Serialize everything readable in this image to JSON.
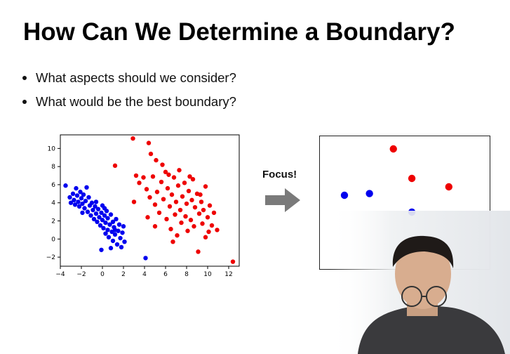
{
  "slide": {
    "title": "How Can We Determine a Boundary?",
    "bullets": [
      "What aspects should we consider?",
      "What would be the best boundary?"
    ],
    "focus_label": "Focus!",
    "arrow_icon": "right-arrow-icon"
  },
  "colors": {
    "blue": "#0000ee",
    "red": "#ee0000",
    "arrow": "#7a7a7a"
  },
  "chart_data": [
    {
      "type": "scatter",
      "xlim": [
        -4,
        13
      ],
      "ylim": [
        -3,
        11.5
      ],
      "xticks": [
        -4,
        -2,
        0,
        2,
        4,
        6,
        8,
        10,
        12
      ],
      "yticks": [
        -2,
        0,
        2,
        4,
        6,
        8,
        10
      ],
      "series": [
        {
          "color": "#0000ee",
          "points": [
            [
              -3.5,
              5.9
            ],
            [
              -3.1,
              4.6
            ],
            [
              -3.0,
              4.0
            ],
            [
              -2.8,
              5.0
            ],
            [
              -2.7,
              4.3
            ],
            [
              -2.5,
              5.6
            ],
            [
              -2.4,
              4.8
            ],
            [
              -2.3,
              4.1
            ],
            [
              -2.2,
              3.6
            ],
            [
              -2.1,
              5.2
            ],
            [
              -2.0,
              4.5
            ],
            [
              -1.9,
              3.9
            ],
            [
              -1.8,
              4.9
            ],
            [
              -1.7,
              3.4
            ],
            [
              -1.6,
              4.2
            ],
            [
              -1.5,
              5.7
            ],
            [
              -1.4,
              3.0
            ],
            [
              -1.3,
              4.6
            ],
            [
              -1.2,
              3.7
            ],
            [
              -1.1,
              2.6
            ],
            [
              -1.0,
              4.0
            ],
            [
              -0.9,
              3.2
            ],
            [
              -0.8,
              2.2
            ],
            [
              -0.7,
              3.6
            ],
            [
              -0.6,
              2.8
            ],
            [
              -0.5,
              1.9
            ],
            [
              -0.4,
              3.3
            ],
            [
              -0.3,
              2.4
            ],
            [
              -0.2,
              1.5
            ],
            [
              -0.1,
              2.9
            ],
            [
              0.0,
              3.7
            ],
            [
              0.0,
              2.1
            ],
            [
              0.1,
              1.2
            ],
            [
              0.2,
              2.6
            ],
            [
              0.3,
              1.8
            ],
            [
              0.3,
              0.6
            ],
            [
              0.4,
              3.1
            ],
            [
              0.5,
              2.3
            ],
            [
              0.5,
              1.0
            ],
            [
              0.6,
              0.2
            ],
            [
              0.7,
              1.6
            ],
            [
              0.8,
              2.7
            ],
            [
              0.9,
              0.8
            ],
            [
              1.0,
              1.9
            ],
            [
              1.0,
              -0.2
            ],
            [
              1.1,
              1.3
            ],
            [
              1.2,
              0.5
            ],
            [
              1.3,
              2.2
            ],
            [
              1.4,
              -0.6
            ],
            [
              1.5,
              0.9
            ],
            [
              1.6,
              1.6
            ],
            [
              1.7,
              0.1
            ],
            [
              1.8,
              -0.9
            ],
            [
              1.9,
              0.7
            ],
            [
              2.0,
              1.4
            ],
            [
              2.1,
              -0.3
            ],
            [
              -0.1,
              -1.2
            ],
            [
              0.8,
              -1.0
            ],
            [
              4.1,
              -2.1
            ],
            [
              -2.6,
              3.8
            ],
            [
              -1.9,
              2.9
            ],
            [
              -0.6,
              4.1
            ],
            [
              0.2,
              3.4
            ],
            [
              1.2,
              1.0
            ]
          ]
        },
        {
          "color": "#ee0000",
          "points": [
            [
              1.2,
              8.1
            ],
            [
              2.9,
              11.1
            ],
            [
              4.4,
              10.6
            ],
            [
              4.6,
              9.4
            ],
            [
              5.1,
              8.7
            ],
            [
              3.2,
              7.0
            ],
            [
              3.5,
              6.2
            ],
            [
              3.9,
              6.8
            ],
            [
              4.2,
              5.5
            ],
            [
              4.5,
              4.6
            ],
            [
              4.8,
              6.9
            ],
            [
              5.0,
              3.8
            ],
            [
              5.2,
              5.2
            ],
            [
              5.4,
              2.9
            ],
            [
              5.6,
              6.3
            ],
            [
              5.8,
              4.4
            ],
            [
              6.0,
              7.4
            ],
            [
              6.1,
              2.2
            ],
            [
              6.2,
              5.6
            ],
            [
              6.4,
              3.6
            ],
            [
              6.5,
              1.1
            ],
            [
              6.6,
              4.9
            ],
            [
              6.8,
              6.8
            ],
            [
              6.9,
              2.7
            ],
            [
              7.0,
              4.1
            ],
            [
              7.1,
              0.4
            ],
            [
              7.2,
              5.9
            ],
            [
              7.4,
              3.2
            ],
            [
              7.5,
              1.8
            ],
            [
              7.6,
              4.7
            ],
            [
              7.8,
              6.2
            ],
            [
              7.9,
              2.5
            ],
            [
              8.0,
              3.9
            ],
            [
              8.1,
              0.9
            ],
            [
              8.2,
              5.3
            ],
            [
              8.4,
              2.1
            ],
            [
              8.5,
              4.3
            ],
            [
              8.6,
              6.6
            ],
            [
              8.7,
              1.4
            ],
            [
              8.8,
              3.5
            ],
            [
              9.0,
              5.0
            ],
            [
              9.1,
              -1.4
            ],
            [
              9.2,
              2.8
            ],
            [
              9.4,
              4.1
            ],
            [
              9.5,
              1.7
            ],
            [
              9.6,
              3.2
            ],
            [
              9.8,
              5.8
            ],
            [
              10.0,
              2.4
            ],
            [
              10.1,
              0.8
            ],
            [
              10.2,
              3.7
            ],
            [
              10.4,
              1.5
            ],
            [
              10.6,
              2.9
            ],
            [
              10.9,
              1.0
            ],
            [
              12.4,
              -2.5
            ],
            [
              5.7,
              8.2
            ],
            [
              6.3,
              7.1
            ],
            [
              4.3,
              2.4
            ],
            [
              5.0,
              1.4
            ],
            [
              6.7,
              -0.3
            ],
            [
              9.8,
              0.2
            ],
            [
              7.3,
              7.6
            ],
            [
              8.3,
              6.9
            ],
            [
              3.0,
              4.1
            ],
            [
              9.3,
              4.9
            ]
          ]
        }
      ]
    },
    {
      "type": "scatter",
      "series": [
        {
          "color": "#0000ee",
          "points": [
            [
              0.0,
              0.4
            ],
            [
              0.23,
              0.42
            ],
            [
              0.62,
              0.2
            ]
          ]
        },
        {
          "color": "#ee0000",
          "points": [
            [
              0.45,
              0.95
            ],
            [
              0.62,
              0.6
            ],
            [
              0.96,
              0.5
            ]
          ]
        }
      ]
    }
  ]
}
